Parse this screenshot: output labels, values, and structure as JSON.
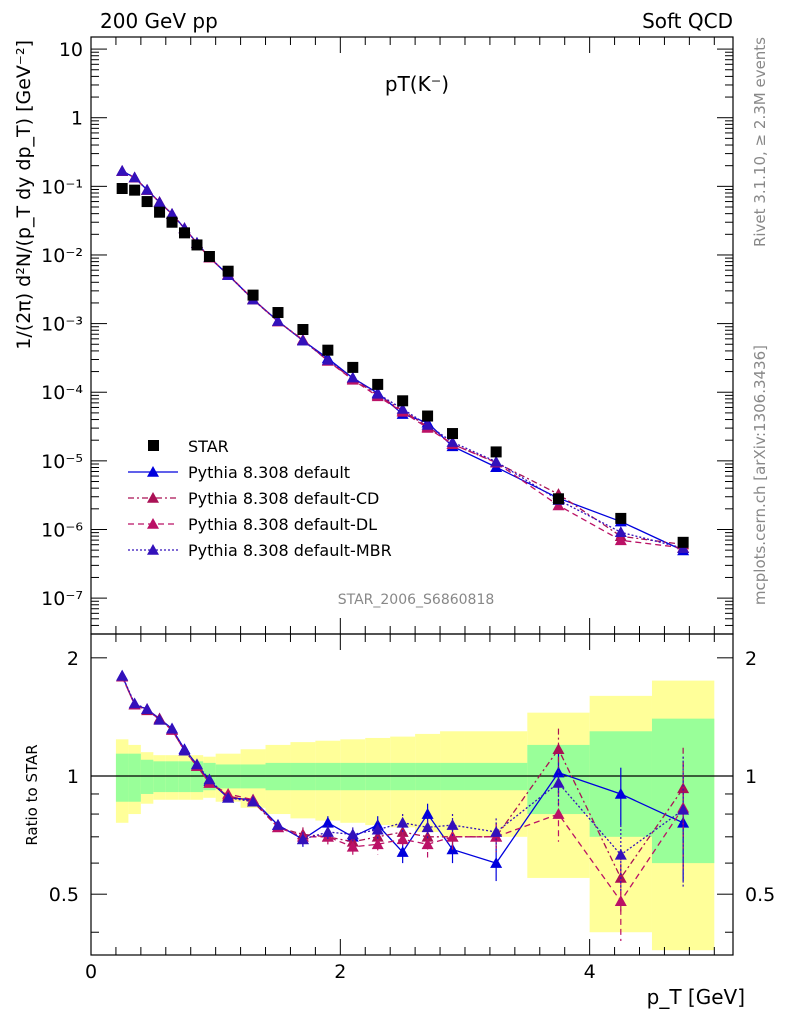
{
  "header": {
    "left": "200 GeV pp",
    "right": "Soft QCD"
  },
  "side_labels": {
    "rivet": "Rivet 3.1.10, ≥ 2.3M events",
    "mcplots": "mcplots.cern.ch [arXiv:1306.3436]"
  },
  "top_panel": {
    "title": "pT(K⁻)",
    "ylabel": "1/(2π) d²N/(p_T dy dp_T) [GeV⁻²]",
    "watermark": "STAR_2006_S6860818",
    "yticks": [
      {
        "v": 10,
        "label": "10"
      },
      {
        "v": 1,
        "label": "1"
      },
      {
        "v": 0.1,
        "label": "10⁻¹"
      },
      {
        "v": 0.01,
        "label": "10⁻²"
      },
      {
        "v": 0.001,
        "label": "10⁻³"
      },
      {
        "v": 0.0001,
        "label": "10⁻⁴"
      },
      {
        "v": 1e-05,
        "label": "10⁻⁵"
      },
      {
        "v": 1e-06,
        "label": "10⁻⁶"
      },
      {
        "v": 1e-07,
        "label": "10⁻⁷"
      }
    ]
  },
  "bottom_panel": {
    "ylabel": "Ratio to STAR",
    "xlabel": "p_T [GeV]",
    "yticks": [
      {
        "v": 2,
        "label": "2"
      },
      {
        "v": 1,
        "label": "1"
      },
      {
        "v": 0.5,
        "label": "0.5"
      }
    ],
    "xticks": [
      {
        "v": 0,
        "label": "0"
      },
      {
        "v": 2,
        "label": "2"
      },
      {
        "v": 4,
        "label": "4"
      }
    ]
  },
  "legend": [
    {
      "key": "star",
      "label": "STAR"
    },
    {
      "key": "def",
      "label": "Pythia 8.308 default"
    },
    {
      "key": "cd",
      "label": "Pythia 8.308 default-CD"
    },
    {
      "key": "dl",
      "label": "Pythia 8.308 default-DL"
    },
    {
      "key": "mbr",
      "label": "Pythia 8.308 default-MBR"
    }
  ],
  "chart_data": {
    "type": "scatter",
    "title": "pT(K⁻)",
    "xlabel": "p_T [GeV]",
    "ylabel": "1/(2π) d²N/(p_T dy dp_T) [GeV⁻²]",
    "xlim": [
      0,
      5.15
    ],
    "ylim_top": [
      3e-08,
      15
    ],
    "ylog_top": true,
    "ylim_ratio": [
      0.35,
      2.3
    ],
    "ylog_ratio": true,
    "x": [
      0.25,
      0.35,
      0.45,
      0.55,
      0.65,
      0.75,
      0.85,
      0.95,
      1.1,
      1.3,
      1.5,
      1.7,
      1.9,
      2.1,
      2.3,
      2.5,
      2.7,
      2.9,
      3.25,
      3.75,
      4.25,
      4.75
    ],
    "bin_edges": [
      0.2,
      0.3,
      0.4,
      0.5,
      0.6,
      0.7,
      0.8,
      0.9,
      1.0,
      1.2,
      1.4,
      1.6,
      1.8,
      2.0,
      2.2,
      2.4,
      2.6,
      2.8,
      3.0,
      3.5,
      4.0,
      4.5,
      5.0
    ],
    "star": [
      0.093,
      0.088,
      0.06,
      0.042,
      0.03,
      0.021,
      0.014,
      0.0095,
      0.0058,
      0.0026,
      0.00145,
      0.00082,
      0.00041,
      0.00023,
      0.00013,
      7.5e-05,
      4.5e-05,
      2.5e-05,
      1.35e-05,
      2.8e-06,
      1.45e-06,
      6.5e-07
    ],
    "band_green": [
      0.14,
      0.14,
      0.1,
      0.09,
      0.09,
      0.09,
      0.09,
      0.08,
      0.07,
      0.07,
      0.08,
      0.08,
      0.08,
      0.08,
      0.08,
      0.08,
      0.08,
      0.08,
      0.08,
      0.2,
      0.3,
      0.4
    ],
    "band_yellow": [
      0.24,
      0.2,
      0.15,
      0.13,
      0.13,
      0.13,
      0.13,
      0.12,
      0.14,
      0.17,
      0.2,
      0.22,
      0.23,
      0.24,
      0.25,
      0.26,
      0.28,
      0.3,
      0.3,
      0.45,
      0.6,
      0.75
    ],
    "series": [
      {
        "name": "Pythia 8.308 default",
        "key": "def",
        "color": "#0000dd",
        "dash": "",
        "ratio": [
          1.8,
          1.52,
          1.48,
          1.4,
          1.32,
          1.17,
          1.07,
          0.97,
          0.88,
          0.87,
          0.75,
          0.69,
          0.76,
          0.7,
          0.75,
          0.64,
          0.8,
          0.65,
          0.6,
          1.02,
          0.9,
          0.76
        ],
        "ratio_err": [
          0.02,
          0.02,
          0.02,
          0.02,
          0.02,
          0.02,
          0.02,
          0.02,
          0.02,
          0.02,
          0.02,
          0.03,
          0.03,
          0.03,
          0.04,
          0.04,
          0.05,
          0.05,
          0.06,
          0.12,
          0.15,
          0.22
        ]
      },
      {
        "name": "Pythia 8.308 default-CD",
        "key": "cd",
        "color": "#aa1155",
        "dash": "6,3,2,3",
        "ratio": [
          1.79,
          1.52,
          1.47,
          1.4,
          1.31,
          1.16,
          1.06,
          0.96,
          0.89,
          0.86,
          0.74,
          0.71,
          0.7,
          0.68,
          0.7,
          0.72,
          0.7,
          0.7,
          0.7,
          1.17,
          0.55,
          0.93
        ],
        "ratio_err": [
          0.02,
          0.02,
          0.02,
          0.02,
          0.02,
          0.02,
          0.02,
          0.02,
          0.02,
          0.02,
          0.02,
          0.03,
          0.03,
          0.03,
          0.04,
          0.04,
          0.05,
          0.05,
          0.06,
          0.15,
          0.1,
          0.25
        ]
      },
      {
        "name": "Pythia 8.308 default-DL",
        "key": "dl",
        "color": "#bb1166",
        "dash": "6,4",
        "ratio": [
          1.79,
          1.52,
          1.48,
          1.39,
          1.31,
          1.16,
          1.06,
          0.96,
          0.9,
          0.87,
          0.74,
          0.7,
          0.7,
          0.66,
          0.67,
          0.69,
          0.67,
          0.7,
          0.7,
          0.8,
          0.48,
          0.83
        ],
        "ratio_err": [
          0.02,
          0.02,
          0.02,
          0.02,
          0.02,
          0.02,
          0.02,
          0.02,
          0.02,
          0.02,
          0.02,
          0.03,
          0.03,
          0.03,
          0.04,
          0.04,
          0.05,
          0.05,
          0.06,
          0.12,
          0.1,
          0.25
        ]
      },
      {
        "name": "Pythia 8.308 default-MBR",
        "key": "mbr",
        "color": "#3311bb",
        "dash": "2,2",
        "ratio": [
          1.8,
          1.53,
          1.48,
          1.39,
          1.32,
          1.16,
          1.07,
          0.98,
          0.88,
          0.86,
          0.75,
          0.69,
          0.72,
          0.71,
          0.73,
          0.76,
          0.74,
          0.75,
          0.72,
          0.96,
          0.63,
          0.82
        ],
        "ratio_err": [
          0.02,
          0.02,
          0.02,
          0.02,
          0.02,
          0.02,
          0.02,
          0.02,
          0.02,
          0.02,
          0.02,
          0.03,
          0.03,
          0.03,
          0.04,
          0.04,
          0.05,
          0.05,
          0.06,
          0.12,
          0.12,
          0.3
        ]
      }
    ]
  }
}
